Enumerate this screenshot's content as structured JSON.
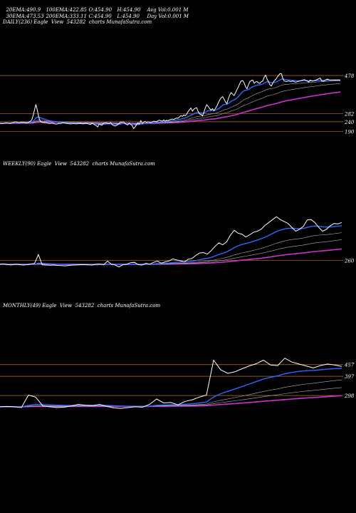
{
  "header": {
    "row1": [
      {
        "label": "20EMA:",
        "value": "490.9"
      },
      {
        "label": "100EMA:",
        "value": "422.85"
      },
      {
        "label": "O:",
        "value": "454.90"
      },
      {
        "label": "H:",
        "value": "454.90"
      },
      {
        "label": "Avg Vol:",
        "value": "0.001 M"
      }
    ],
    "row2": [
      {
        "label": "30EMA:",
        "value": "473.53"
      },
      {
        "label": "200EMA:",
        "value": "333.11"
      },
      {
        "label": "C:",
        "value": "454.90"
      },
      {
        "label": "L:",
        "value": "454.90"
      },
      {
        "label": "Day Vol:",
        "value": "0.001 M"
      }
    ]
  },
  "panels": [
    {
      "title": "DAILY(236) Eagle  View  543282  charts MunafaSutra.com",
      "price_labels": [
        "478",
        "282",
        "240",
        "190"
      ]
    },
    {
      "title": "WEEKLY(90) Eagle  View  543282  charts MunafaSutra.com",
      "price_labels": [
        "260"
      ]
    },
    {
      "title": "MONTHLY(49) Eagle  View  543282  charts MunafaSutra.com",
      "price_labels": [
        "457",
        "397",
        "298"
      ]
    }
  ],
  "colors": {
    "background": "#000000",
    "price": "#ffffff",
    "ema_fast": "#3366ff",
    "ema_slow": "#cc33cc",
    "ema_other": "#b0b0b0",
    "reference_line": "#b8732e"
  },
  "chart_data": [
    {
      "type": "line",
      "timeframe": "DAILY",
      "bars": 236,
      "ylim": [
        170,
        500
      ],
      "series": [
        {
          "role": "price",
          "values": [
            232,
            232,
            231,
            233,
            235,
            234,
            233,
            232,
            234,
            236,
            238,
            240,
            237,
            235,
            236,
            238,
            239,
            237,
            236,
            235,
            238,
            242,
            248,
            270,
            300,
            330,
            300,
            262,
            243,
            238,
            236,
            235,
            236,
            233,
            232,
            231,
            233,
            232,
            230,
            228,
            229,
            232,
            231,
            233,
            234,
            233,
            232,
            231,
            230,
            229,
            230,
            231,
            230,
            229,
            230,
            231,
            232,
            230,
            229,
            231,
            232,
            230,
            228,
            226,
            232,
            229,
            224,
            221,
            213,
            228,
            225,
            222,
            233,
            234,
            235,
            232,
            230,
            236,
            226,
            222,
            218,
            221,
            225,
            231,
            240,
            238,
            240,
            232,
            226,
            224,
            233,
            226,
            222,
            205,
            213,
            224,
            235,
            228,
            246,
            232,
            237,
            242,
            236,
            240,
            238,
            236,
            239,
            243,
            242,
            240,
            246,
            248,
            245,
            243,
            250,
            243,
            248,
            245,
            250,
            252,
            254,
            252,
            256,
            259,
            258,
            265,
            272,
            268,
            275,
            271,
            280,
            292,
            302,
            310,
            295,
            305,
            310,
            312,
            293,
            280,
            278,
            270,
            290,
            312,
            328,
            319,
            308,
            300,
            308,
            296,
            308,
            320,
            337,
            352,
            364,
            369,
            358,
            343,
            333,
            359,
            378,
            390,
            382,
            375,
            390,
            405,
            419,
            437,
            450,
            452,
            440,
            420,
            410,
            430,
            446,
            452,
            455,
            438,
            445,
            447,
            440,
            438,
            446,
            450,
            470,
            480,
            460,
            445,
            430,
            424,
            440,
            451,
            458,
            469,
            479,
            488,
            487,
            462,
            450,
            448,
            448,
            450,
            448,
            448,
            450,
            445,
            444,
            446,
            449,
            450,
            453,
            455,
            457,
            452,
            450,
            444,
            455,
            450,
            450,
            452,
            455,
            458,
            462,
            465,
            450,
            448,
            452,
            456,
            460,
            456,
            454,
            455,
            455,
            455,
            455,
            455,
            455,
            455
          ]
        },
        {
          "role": "ema20",
          "values": [
            240,
            241,
            242,
            243,
            244,
            246,
            250,
            256,
            264,
            275,
            287,
            298,
            310,
            322,
            333,
            344,
            355,
            366,
            376,
            386,
            396,
            406,
            415,
            424,
            433,
            441,
            448,
            455,
            462,
            468,
            474,
            479,
            484,
            488,
            490,
            490,
            491,
            491
          ]
        },
        {
          "role": "ema200",
          "values": [
            236,
            238,
            240,
            242,
            245,
            248,
            252,
            256,
            262,
            268,
            274,
            280,
            286,
            292,
            298,
            304,
            310,
            315,
            320,
            325,
            329,
            333
          ]
        }
      ],
      "reference_levels": [
        478,
        282,
        240,
        190
      ]
    },
    {
      "type": "line",
      "timeframe": "WEEKLY",
      "bars": 90,
      "series": [
        {
          "role": "price",
          "values": [
            240,
            242,
            238,
            237,
            240,
            239,
            236,
            238,
            241,
            244,
            290,
            237,
            236,
            235,
            236,
            234,
            233,
            232,
            234,
            236,
            237,
            238,
            239,
            237,
            236,
            240,
            241,
            238,
            256,
            240,
            236,
            226,
            238,
            240,
            248,
            250,
            238,
            236,
            245,
            240,
            250,
            256,
            246,
            252,
            257,
            268,
            262,
            258,
            252,
            266,
            270,
            286,
            298,
            300,
            292,
            310,
            332,
            350,
            340,
            355,
            390,
            415,
            400,
            395,
            380,
            392,
            405,
            410,
            420,
            440,
            455,
            470,
            485,
            470,
            460,
            450,
            430,
            410,
            420,
            435,
            468,
            470,
            455,
            430,
            410,
            420,
            438,
            450,
            448,
            455
          ]
        }
      ],
      "reference_levels": [
        260
      ]
    },
    {
      "type": "line",
      "timeframe": "MONTHLY",
      "bars": 49,
      "series": [
        {
          "role": "price",
          "values": [
            240,
            242,
            240,
            236,
            300,
            290,
            245,
            240,
            236,
            238,
            244,
            252,
            248,
            246,
            252,
            242,
            234,
            232,
            236,
            240,
            238,
            252,
            280,
            260,
            262,
            250,
            268,
            276,
            290,
            300,
            480,
            430,
            412,
            420,
            436,
            450,
            462,
            480,
            455,
            452,
            490,
            470,
            460,
            450,
            440,
            452,
            460,
            455,
            448
          ]
        }
      ],
      "reference_levels": [
        457,
        397,
        298
      ]
    }
  ]
}
